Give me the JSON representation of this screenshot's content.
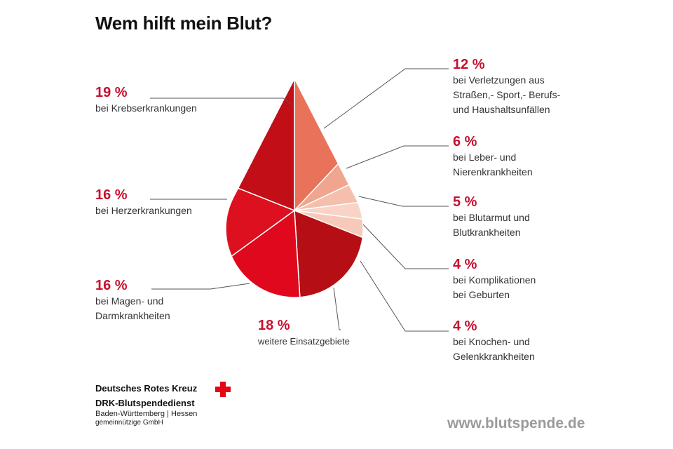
{
  "title": "Wem hilft mein Blut?",
  "chart_data": {
    "type": "pie",
    "shape": "blood-drop",
    "unit": "%",
    "slices": [
      {
        "label": "bei Verletzungen aus\nStraßen,- Sport,- Berufs-\nund Haushaltsunfällen",
        "value": 12,
        "value_text": "12 %",
        "color": "#e8725a"
      },
      {
        "label": "bei Leber- und\nNierenkrankheiten",
        "value": 6,
        "value_text": "6 %",
        "color": "#f0a58e"
      },
      {
        "label": "bei Blutarmut und\nBlutkrankheiten",
        "value": 5,
        "value_text": "5 %",
        "color": "#f4bfac"
      },
      {
        "label": "bei Komplikationen\nbei Geburten",
        "value": 4,
        "value_text": "4 %",
        "color": "#f8d3c6"
      },
      {
        "label": "bei Knochen- und\nGelenkkrankheiten",
        "value": 4,
        "value_text": "4 %",
        "color": "#f7c9b9"
      },
      {
        "label": "weitere Einsatzgebiete",
        "value": 18,
        "value_text": "18 %",
        "color": "#b50e14"
      },
      {
        "label": "bei Magen- und\nDarmkrankheiten",
        "value": 16,
        "value_text": "16 %",
        "color": "#e0081c"
      },
      {
        "label": "bei Herzerkrankungen",
        "value": 16,
        "value_text": "16 %",
        "color": "#dd1020"
      },
      {
        "label": "bei Krebserkrankungen",
        "value": 19,
        "value_text": "19 %",
        "color": "#c10e17"
      }
    ]
  },
  "logo": {
    "org": "Deutsches Rotes Kreuz",
    "service": "DRK-Blutspendedienst",
    "region": "Baden-Württemberg | Hessen",
    "legal": "gemeinnützige GmbH",
    "cross_color": "#e30613"
  },
  "url": "www.blutspende.de"
}
